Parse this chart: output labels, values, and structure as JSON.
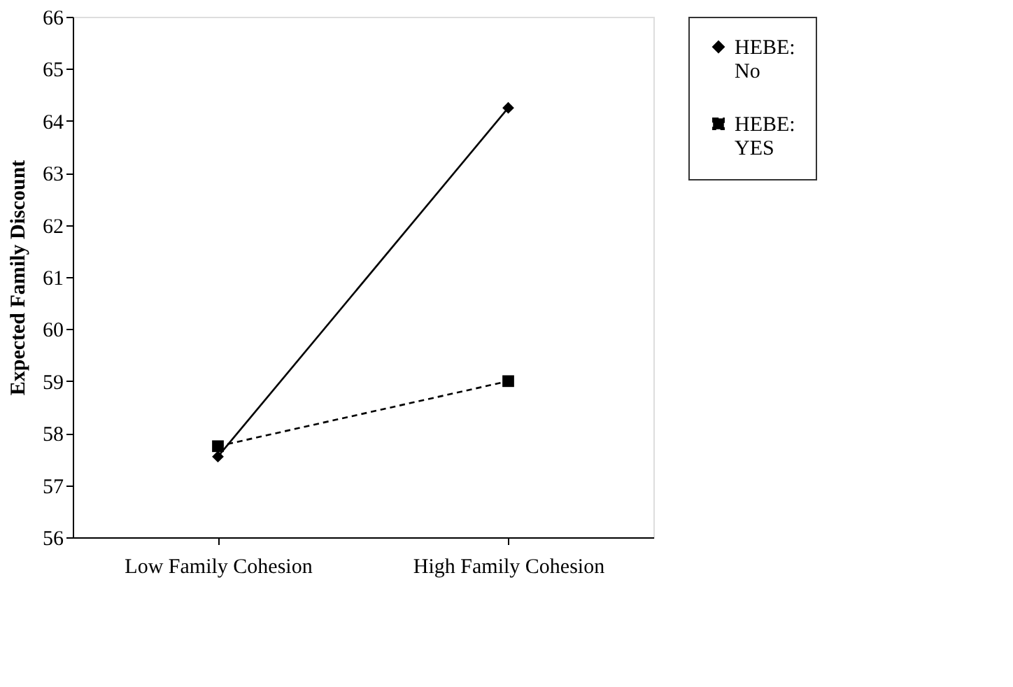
{
  "chart_data": {
    "type": "line",
    "ylabel": "Expected Family Discount",
    "categories": [
      "Low Family Cohesion",
      "High Family Cohesion"
    ],
    "series": [
      {
        "name": "HEBE: No",
        "color": "#000000",
        "values": [
          57.55,
          64.25
        ],
        "marker": "diamond",
        "line_style": "solid"
      },
      {
        "name": "HEBE: YES",
        "color": "#000000",
        "values": [
          57.75,
          59.0
        ],
        "marker": "square",
        "line_style": "dashed"
      }
    ],
    "ylim": [
      56,
      66
    ],
    "yticks": [
      56,
      57,
      58,
      59,
      60,
      61,
      62,
      63,
      64,
      65,
      66
    ],
    "grid": false,
    "legend": "right"
  }
}
